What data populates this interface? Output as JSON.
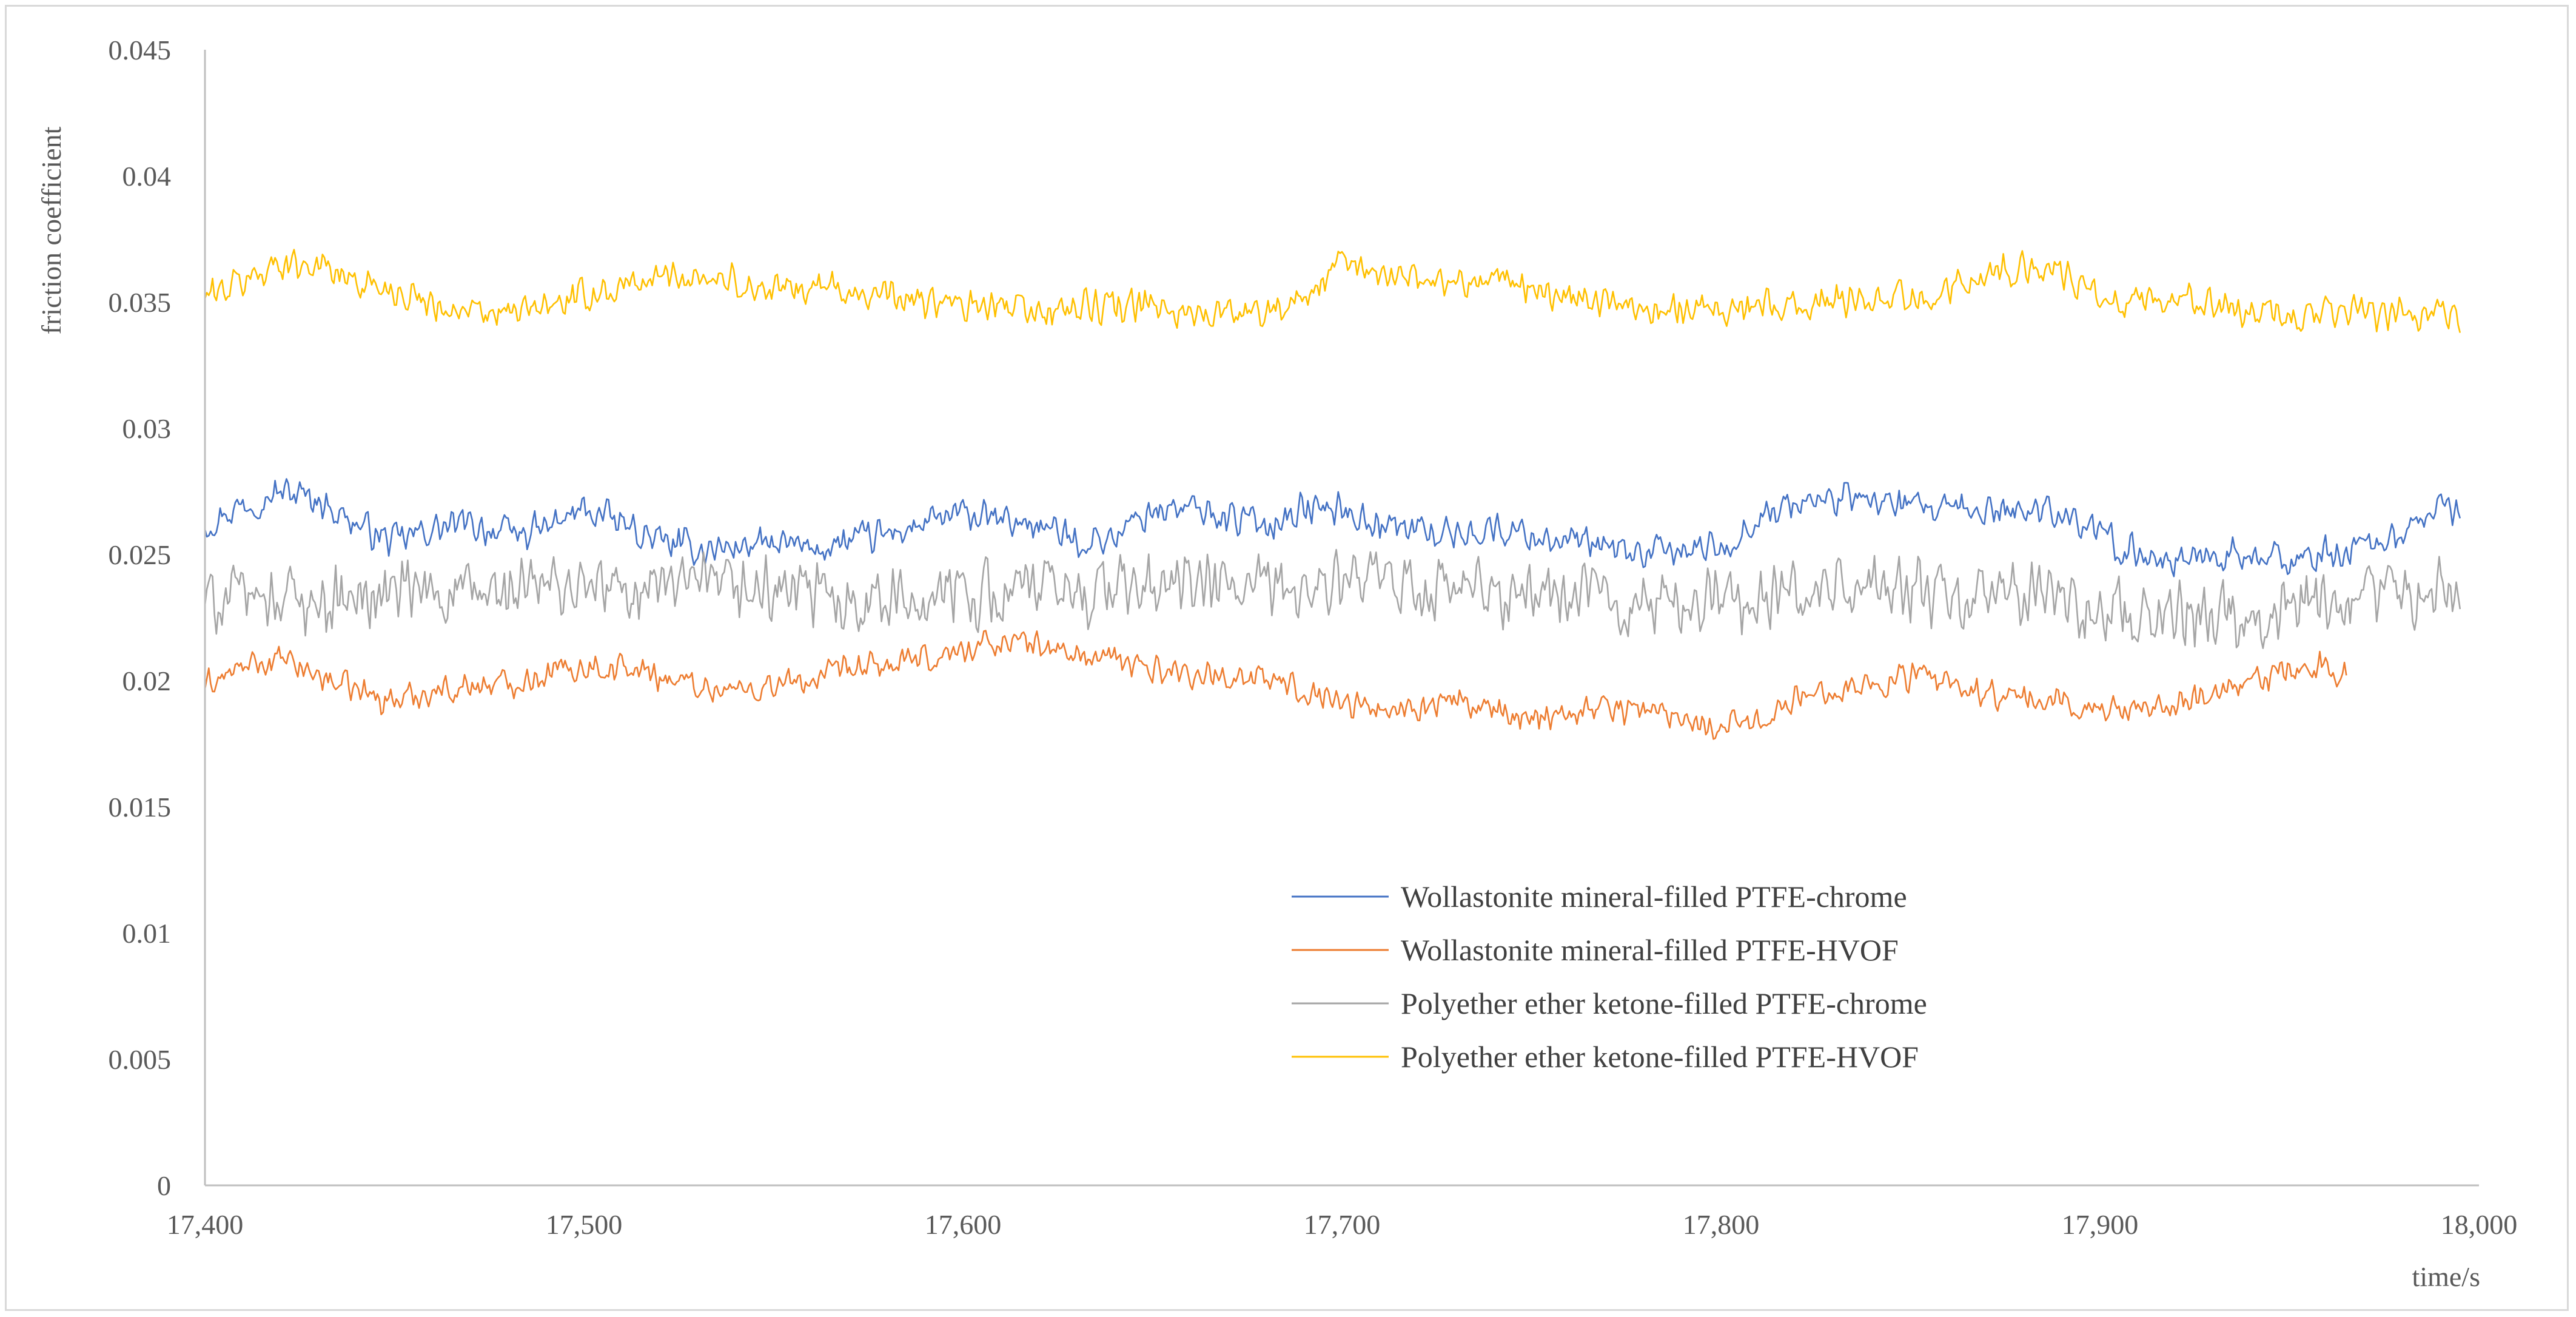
{
  "chart_data": {
    "type": "line",
    "title": "",
    "xlabel": "time/s",
    "ylabel": "friction coefficient",
    "xlim": [
      17400,
      18000
    ],
    "ylim": [
      0,
      0.045
    ],
    "x_ticks": [
      17400,
      17500,
      17600,
      17700,
      17800,
      17900,
      18000
    ],
    "x_tick_labels": [
      "17,400",
      "17,500",
      "17,600",
      "17,700",
      "17,800",
      "17,900",
      "18,000"
    ],
    "y_ticks": [
      0,
      0.005,
      0.01,
      0.015,
      0.02,
      0.025,
      0.03,
      0.035,
      0.04,
      0.045
    ],
    "y_tick_labels": [
      "0",
      "0.005",
      "0.01",
      "0.015",
      "0.02",
      "0.025",
      "0.03",
      "0.035",
      "0.04",
      "0.045"
    ],
    "legend_position": "lower-right",
    "grid": false,
    "series": [
      {
        "name": "Wollastonite mineral-filled PTFE-chrome",
        "color": "#4472c4",
        "noise": 0.0008,
        "x": [
          17400,
          17410,
          17420,
          17430,
          17440,
          17450,
          17460,
          17470,
          17480,
          17490,
          17500,
          17510,
          17520,
          17530,
          17540,
          17550,
          17560,
          17570,
          17580,
          17590,
          17600,
          17610,
          17620,
          17630,
          17640,
          17650,
          17660,
          17670,
          17680,
          17690,
          17700,
          17710,
          17720,
          17730,
          17740,
          17750,
          17760,
          17770,
          17780,
          17790,
          17800,
          17810,
          17820,
          17830,
          17840,
          17850,
          17860,
          17870,
          17880,
          17890,
          17900,
          17910,
          17920,
          17930,
          17940,
          17950,
          17960,
          17970,
          17980,
          17990,
          17995
        ],
        "y": [
          0.0262,
          0.027,
          0.0275,
          0.0272,
          0.0262,
          0.0255,
          0.026,
          0.0262,
          0.0258,
          0.026,
          0.0268,
          0.0262,
          0.0255,
          0.0252,
          0.0253,
          0.0254,
          0.0252,
          0.0255,
          0.0258,
          0.0262,
          0.0266,
          0.0263,
          0.0262,
          0.0255,
          0.0257,
          0.0268,
          0.0268,
          0.0265,
          0.0262,
          0.0268,
          0.0268,
          0.0262,
          0.026,
          0.0258,
          0.026,
          0.0258,
          0.0255,
          0.0252,
          0.025,
          0.0252,
          0.0252,
          0.0265,
          0.027,
          0.0272,
          0.0272,
          0.0268,
          0.0267,
          0.0267,
          0.0268,
          0.0268,
          0.0257,
          0.025,
          0.0248,
          0.025,
          0.0248,
          0.0248,
          0.025,
          0.0253,
          0.0258,
          0.027,
          0.0265
        ]
      },
      {
        "name": "Wollastonite mineral-filled PTFE-HVOF",
        "color": "#ed7d31",
        "noise": 0.0007,
        "x": [
          17400,
          17410,
          17420,
          17430,
          17440,
          17450,
          17460,
          17470,
          17480,
          17490,
          17500,
          17510,
          17520,
          17530,
          17540,
          17550,
          17560,
          17570,
          17580,
          17590,
          17600,
          17610,
          17620,
          17630,
          17640,
          17650,
          17660,
          17670,
          17680,
          17690,
          17700,
          17710,
          17720,
          17730,
          17740,
          17750,
          17760,
          17770,
          17780,
          17790,
          17800,
          17810,
          17820,
          17830,
          17840,
          17850,
          17860,
          17870,
          17880,
          17890,
          17900,
          17910,
          17920,
          17930,
          17940,
          17950,
          17960,
          17965
        ],
        "y": [
          0.0198,
          0.0205,
          0.0208,
          0.0202,
          0.0196,
          0.0192,
          0.0196,
          0.0198,
          0.0199,
          0.0203,
          0.0206,
          0.0205,
          0.0202,
          0.0198,
          0.0196,
          0.0198,
          0.02,
          0.0204,
          0.0206,
          0.0208,
          0.0212,
          0.0216,
          0.0214,
          0.021,
          0.0208,
          0.0205,
          0.0203,
          0.0202,
          0.02,
          0.0197,
          0.0192,
          0.0188,
          0.019,
          0.0192,
          0.0187,
          0.0186,
          0.0188,
          0.019,
          0.0188,
          0.0186,
          0.0182,
          0.0185,
          0.0192,
          0.0198,
          0.0198,
          0.0202,
          0.0198,
          0.0195,
          0.0192,
          0.0192,
          0.0188,
          0.019,
          0.0192,
          0.0194,
          0.0198,
          0.0205,
          0.0205,
          0.0202
        ]
      },
      {
        "name": "Polyether ether ketone-filled PTFE-chrome",
        "color": "#a5a5a5",
        "noise": 0.0016,
        "x": [
          17400,
          17410,
          17420,
          17430,
          17440,
          17450,
          17460,
          17470,
          17480,
          17490,
          17500,
          17510,
          17520,
          17530,
          17540,
          17550,
          17560,
          17570,
          17580,
          17590,
          17600,
          17610,
          17620,
          17630,
          17640,
          17650,
          17660,
          17670,
          17680,
          17690,
          17700,
          17710,
          17720,
          17730,
          17740,
          17750,
          17760,
          17770,
          17780,
          17790,
          17800,
          17810,
          17820,
          17830,
          17840,
          17850,
          17860,
          17870,
          17880,
          17890,
          17900,
          17910,
          17920,
          17930,
          17940,
          17950,
          17960,
          17970,
          17980,
          17990,
          17995
        ],
        "y": [
          0.0232,
          0.0233,
          0.0234,
          0.0232,
          0.0232,
          0.0234,
          0.0235,
          0.0234,
          0.0234,
          0.0238,
          0.0236,
          0.0236,
          0.0238,
          0.0236,
          0.0235,
          0.0236,
          0.0234,
          0.0233,
          0.0232,
          0.0233,
          0.0235,
          0.0235,
          0.0236,
          0.0235,
          0.0237,
          0.0237,
          0.0238,
          0.0236,
          0.0236,
          0.0236,
          0.0238,
          0.0238,
          0.0236,
          0.0236,
          0.0234,
          0.0234,
          0.0234,
          0.0232,
          0.023,
          0.0231,
          0.0232,
          0.0232,
          0.0234,
          0.0236,
          0.0236,
          0.0236,
          0.0232,
          0.0232,
          0.0234,
          0.0232,
          0.0228,
          0.0226,
          0.0228,
          0.0228,
          0.0228,
          0.0228,
          0.0228,
          0.0232,
          0.0234,
          0.0236,
          0.0237
        ]
      },
      {
        "name": "Polyether ether ketone-filled PTFE-HVOF",
        "color": "#ffc000",
        "noise": 0.0008,
        "x": [
          17400,
          17410,
          17420,
          17430,
          17440,
          17450,
          17460,
          17470,
          17480,
          17490,
          17500,
          17510,
          17520,
          17530,
          17540,
          17550,
          17560,
          17570,
          17580,
          17590,
          17600,
          17610,
          17620,
          17630,
          17640,
          17650,
          17660,
          17670,
          17680,
          17690,
          17700,
          17710,
          17720,
          17730,
          17740,
          17750,
          17760,
          17770,
          17780,
          17790,
          17800,
          17810,
          17820,
          17830,
          17840,
          17850,
          17860,
          17870,
          17880,
          17890,
          17900,
          17910,
          17920,
          17930,
          17940,
          17950,
          17960,
          17970,
          17980,
          17990,
          17995
        ],
        "y": [
          0.0352,
          0.0358,
          0.0366,
          0.0365,
          0.0358,
          0.0355,
          0.035,
          0.0345,
          0.0345,
          0.0348,
          0.0352,
          0.0356,
          0.036,
          0.0361,
          0.0358,
          0.0354,
          0.0356,
          0.0355,
          0.0352,
          0.035,
          0.0348,
          0.0348,
          0.0346,
          0.0348,
          0.0348,
          0.0348,
          0.0346,
          0.0345,
          0.0348,
          0.035,
          0.0365,
          0.0362,
          0.036,
          0.0358,
          0.036,
          0.0356,
          0.0352,
          0.035,
          0.0348,
          0.0348,
          0.0348,
          0.0348,
          0.0348,
          0.035,
          0.0352,
          0.0352,
          0.0356,
          0.036,
          0.0365,
          0.0362,
          0.035,
          0.0348,
          0.0352,
          0.0348,
          0.0345,
          0.0344,
          0.0345,
          0.0346,
          0.0344,
          0.0345,
          0.0344
        ]
      }
    ]
  }
}
